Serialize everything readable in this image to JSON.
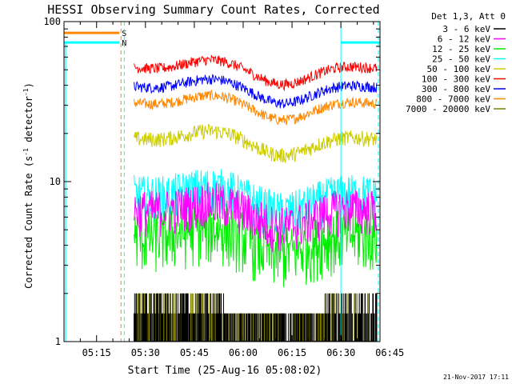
{
  "chart_data": {
    "type": "line",
    "title": "HESSI Observing Summary Count Rates, Corrected",
    "xlabel": "Start Time (25-Aug-16 05:08:02)",
    "ylabel": "Corrected Count Rate (s⁻¹ detector⁻¹)",
    "ylabel_parts": [
      "Corrected Count Rate (s",
      "-1",
      " detector",
      "-1",
      ")"
    ],
    "yscale": "log",
    "ylim": [
      1,
      100
    ],
    "y_ticks": [
      "1",
      "10",
      "100"
    ],
    "xlim_minutes": [
      5.0,
      102.0
    ],
    "x_ticks": [
      "05:15",
      "05:30",
      "05:45",
      "06:00",
      "06:15",
      "06:30",
      "06:45"
    ],
    "x_tick_minutes": [
      15,
      30,
      45,
      60,
      75,
      90,
      105
    ],
    "legend_header": "Det 1,3, Att 0",
    "legend_position": "right",
    "timestamp": "21-Nov-2017 17:11",
    "data_start_minute": 26.5,
    "data_end_minute": 101.0,
    "series": [
      {
        "name": "3 - 6 keV",
        "color": "#000000",
        "kind": "discrete",
        "base": 1.5,
        "noise": 0.25
      },
      {
        "name": "6 - 12 keV",
        "color": "#ff00ff",
        "kind": "noisy",
        "base": 6.5,
        "noise": 0.15
      },
      {
        "name": "12 - 25 keV",
        "color": "#00ee00",
        "kind": "noisy",
        "base": 4.5,
        "noise": 0.2
      },
      {
        "name": "25 - 50 keV",
        "color": "#00ffff",
        "kind": "noisy",
        "base": 8.0,
        "noise": 0.15
      },
      {
        "name": "50 - 100 keV",
        "color": "#cccc00",
        "kind": "noisy",
        "base": 18.0,
        "noise": 0.05
      },
      {
        "name": "100 - 300 keV",
        "color": "#ff0000",
        "kind": "noisy",
        "base": 50.0,
        "noise": 0.035
      },
      {
        "name": "300 - 800 keV",
        "color": "#0000ff",
        "kind": "noisy",
        "base": 38.0,
        "noise": 0.035
      },
      {
        "name": "800 - 7000 keV",
        "color": "#ff8800",
        "kind": "noisy",
        "base": 30.0,
        "noise": 0.035
      },
      {
        "name": "7000 - 20000 keV",
        "color": "#808000",
        "kind": "discrete",
        "base": 1.5,
        "noise": 0.2
      }
    ],
    "flags": [
      {
        "label": "S",
        "color": "#ff8800",
        "y": 85,
        "start_minute": 5.0,
        "end_minute": 22.0
      },
      {
        "label": "N",
        "color": "#00ffff",
        "y": 74,
        "start_minute": 5.0,
        "end_minute": 22.0
      },
      {
        "label": "",
        "color": "#00ffff",
        "y": 74,
        "start_minute": 90.0,
        "end_minute": 102.0
      }
    ],
    "markers": [
      {
        "kind": "dashed",
        "color": "#ff8800",
        "minute": 22.5
      },
      {
        "kind": "dashed",
        "color": "#00ffff",
        "minute": 23.5
      },
      {
        "kind": "solid",
        "color": "#00ffff",
        "minute": 90.0
      },
      {
        "kind": "dashed",
        "color": "#00ffff",
        "minute": 101.5
      }
    ],
    "solid_lines": [
      {
        "color": "#00ffff",
        "minute": 5.5
      }
    ]
  }
}
